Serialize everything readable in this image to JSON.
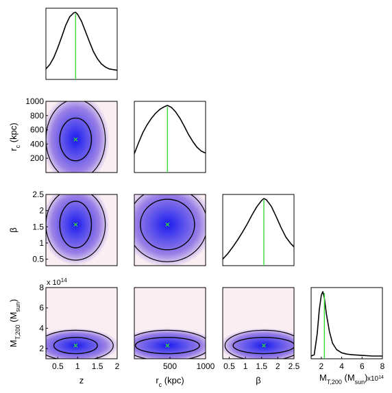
{
  "chart_data": {
    "type": "corner",
    "parameters": [
      {
        "symbol": "z",
        "axis_label": "z",
        "range": [
          0.2,
          2.0
        ],
        "ticks": [
          "0.5",
          "1",
          "1.5",
          "2"
        ],
        "tick_values": [
          0.5,
          1.0,
          1.5,
          2.0
        ],
        "best_fit": 0.95
      },
      {
        "symbol": "r_c",
        "axis_label": "r",
        "axis_label_sub": "c",
        "axis_label_unit": "(kpc)",
        "range": [
          0,
          1000
        ],
        "ticks": [
          "500",
          "1000"
        ],
        "tick_values": [
          500,
          1000
        ],
        "ticks_y": [
          "200",
          "400",
          "600",
          "800",
          "1000"
        ],
        "tick_values_y": [
          200,
          400,
          600,
          800,
          1000
        ],
        "best_fit": 465
      },
      {
        "symbol": "beta",
        "axis_label": "β",
        "range": [
          0.3,
          2.5
        ],
        "ticks": [
          "0.5",
          "1",
          "1.5",
          "2",
          "2.5"
        ],
        "tick_values": [
          0.5,
          1.0,
          1.5,
          2.0,
          2.5
        ],
        "best_fit": 1.57
      },
      {
        "symbol": "M_T200",
        "axis_label": "M",
        "axis_label_sub": "T,200",
        "axis_label_unit_pre": "(M",
        "axis_label_unit_sub": "sun",
        "axis_label_unit_post": ")",
        "range": [
          1.0,
          8.0
        ],
        "ticks": [
          "2",
          "4",
          "6",
          "8"
        ],
        "tick_values": [
          2,
          4,
          6,
          8
        ],
        "best_fit": 2.3,
        "scale_label_x": "x10",
        "scale_label_y": "x 10",
        "scale_exp": "14"
      }
    ],
    "marginals": [
      {
        "param": "z",
        "x": [
          0.2,
          0.3,
          0.4,
          0.5,
          0.6,
          0.7,
          0.8,
          0.9,
          0.95,
          1.0,
          1.1,
          1.2,
          1.3,
          1.4,
          1.5,
          1.6,
          1.7,
          1.8,
          1.9,
          2.0
        ],
        "density": [
          0.12,
          0.19,
          0.3,
          0.45,
          0.62,
          0.8,
          0.93,
          0.99,
          1.0,
          0.97,
          0.86,
          0.7,
          0.54,
          0.39,
          0.28,
          0.2,
          0.15,
          0.12,
          0.11,
          0.1
        ]
      },
      {
        "param": "r_c",
        "x": [
          0,
          60,
          120,
          180,
          240,
          300,
          360,
          420,
          465,
          520,
          580,
          640,
          700,
          760,
          820,
          880,
          940,
          1000
        ],
        "density": [
          0.25,
          0.42,
          0.58,
          0.7,
          0.8,
          0.88,
          0.94,
          0.98,
          1.0,
          0.97,
          0.9,
          0.8,
          0.68,
          0.55,
          0.44,
          0.35,
          0.29,
          0.26
        ]
      },
      {
        "param": "beta",
        "x": [
          0.3,
          0.45,
          0.6,
          0.75,
          0.9,
          1.05,
          1.2,
          1.35,
          1.5,
          1.57,
          1.65,
          1.8,
          1.95,
          2.1,
          2.25,
          2.4,
          2.5
        ],
        "density": [
          0.06,
          0.14,
          0.24,
          0.35,
          0.47,
          0.6,
          0.74,
          0.87,
          0.97,
          1.0,
          0.98,
          0.88,
          0.72,
          0.55,
          0.4,
          0.3,
          0.25
        ]
      },
      {
        "param": "M_T200",
        "x": [
          1.0,
          1.3,
          1.6,
          1.8,
          2.0,
          2.15,
          2.3,
          2.5,
          2.8,
          3.1,
          3.5,
          4.0,
          4.5,
          5.0,
          6.0,
          7.0,
          8.0
        ],
        "density": [
          0.0,
          0.02,
          0.35,
          0.72,
          0.95,
          1.0,
          0.9,
          0.65,
          0.38,
          0.2,
          0.1,
          0.05,
          0.03,
          0.02,
          0.01,
          0.0,
          0.0
        ]
      }
    ],
    "joint": [
      {
        "x": "z",
        "y": "r_c",
        "center": [
          0.95,
          465
        ],
        "inner_contour_halfwidth": [
          0.4,
          300
        ],
        "outer_contour_halfwidth": [
          0.75,
          560
        ]
      },
      {
        "x": "z",
        "y": "beta",
        "center": [
          0.95,
          1.57
        ],
        "inner_contour_halfwidth": [
          0.4,
          0.72
        ],
        "outer_contour_halfwidth": [
          0.75,
          1.1
        ]
      },
      {
        "x": "r_c",
        "y": "beta",
        "center": [
          465,
          1.57
        ],
        "inner_contour_halfwidth": [
          380,
          0.78
        ],
        "outer_contour_halfwidth": [
          560,
          1.15
        ]
      },
      {
        "x": "z",
        "y": "M_T200",
        "center": [
          0.95,
          2.3
        ],
        "inner_contour_halfwidth": [
          0.55,
          0.8
        ],
        "outer_contour_halfwidth": [
          0.95,
          1.5
        ]
      },
      {
        "x": "r_c",
        "y": "M_T200",
        "center": [
          465,
          2.3
        ],
        "inner_contour_halfwidth": [
          450,
          0.8
        ],
        "outer_contour_halfwidth": [
          600,
          1.5
        ]
      },
      {
        "x": "beta",
        "y": "M_T200",
        "center": [
          1.57,
          2.3
        ],
        "inner_contour_halfwidth": [
          0.95,
          0.8
        ],
        "outer_contour_halfwidth": [
          1.2,
          1.5
        ]
      }
    ],
    "colors": {
      "density_peak": "#1a1af0",
      "density_mid": "#9a80e6",
      "density_low": "#fbeef2",
      "contour": "#000000",
      "best_fit_line": "#33dd33",
      "best_fit_marker": "#33dd33"
    }
  }
}
